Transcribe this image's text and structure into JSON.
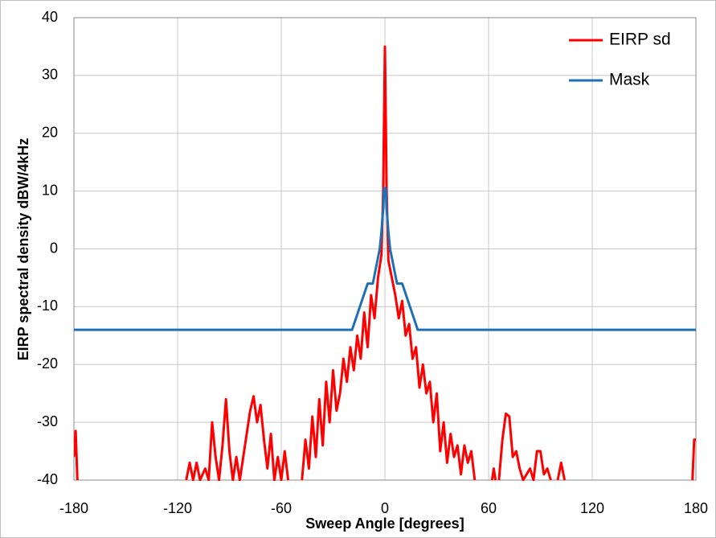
{
  "chart_data": {
    "type": "line",
    "xlabel": "Sweep Angle [degrees]",
    "ylabel": "EIRP spectral density dBW/4kHz",
    "xlim": [
      -180,
      180
    ],
    "xticks": [
      -180,
      -120,
      -60,
      0,
      60,
      120,
      180
    ],
    "ylim": [
      -40,
      40
    ],
    "yticks": [
      -40,
      -30,
      -20,
      -10,
      0,
      10,
      20,
      30,
      40
    ],
    "grid": true,
    "legend": "top-right",
    "series": [
      {
        "name": "EIRP sd",
        "color": "#ff0000",
        "x": [
          -180,
          -179,
          -178,
          -177,
          -115,
          -113,
          -111,
          -109,
          -107,
          -104,
          -102,
          -100,
          -98,
          -96,
          -94,
          -92,
          -90,
          -88,
          -86,
          -84,
          -80,
          -78,
          -76,
          -74,
          -72,
          -70,
          -68,
          -66,
          -64,
          -62,
          -60,
          -58,
          -56,
          -54,
          -48,
          -46,
          -44,
          -42,
          -40,
          -38,
          -36,
          -34,
          -32,
          -30,
          -28,
          -26,
          -24,
          -22,
          -20,
          -18,
          -16,
          -14,
          -12,
          -10,
          -8,
          -6,
          -4,
          -2,
          -1,
          0,
          1,
          2,
          4,
          6,
          8,
          10,
          12,
          14,
          16,
          18,
          20,
          22,
          24,
          26,
          28,
          30,
          32,
          34,
          36,
          38,
          40,
          42,
          44,
          46,
          48,
          50,
          52,
          54,
          62,
          63,
          64,
          65,
          66,
          68,
          70,
          72,
          74,
          76,
          78,
          80,
          82,
          84,
          86,
          88,
          90,
          92,
          94,
          96,
          98,
          100,
          102,
          104,
          106,
          178,
          179,
          180
        ],
        "values": [
          -36,
          -31.5,
          -40,
          null,
          -40,
          -37,
          -40,
          -37,
          -40,
          -38,
          -40,
          -30,
          -36,
          -40,
          -34,
          -26,
          -35,
          -40,
          -36,
          -40,
          -32,
          -28,
          -25.5,
          -30,
          -27,
          -33,
          -38,
          -32,
          -40,
          -36,
          -40,
          -35,
          -40,
          null,
          -40,
          -33,
          -38,
          -29,
          -36,
          -26,
          -34,
          -23,
          -30,
          -21,
          -28,
          -25,
          -19,
          -23,
          -17,
          -21,
          -15,
          -19,
          -11,
          -17,
          -8,
          -12,
          -5,
          -1,
          10,
          35,
          10,
          -2,
          -5,
          -8,
          -12,
          -9,
          -15,
          -13,
          -19,
          -17,
          -24,
          -20,
          -25,
          -23,
          -30,
          -25,
          -35,
          -30,
          -37,
          -32,
          -36,
          -34,
          -39,
          -34,
          -37,
          -35,
          -40,
          null,
          -40,
          -38,
          -40,
          null,
          -40,
          -33,
          -28.5,
          -29,
          -36,
          -35,
          -38,
          -40,
          -39,
          -38,
          -40,
          -35,
          -35,
          -39,
          -38,
          -40,
          null,
          -40,
          -37,
          -40,
          null,
          -40,
          -33,
          -33
        ]
      },
      {
        "name": "Mask",
        "color": "#1f6fb4",
        "x": [
          -180,
          -19,
          -10,
          -7,
          -5,
          -3,
          -2,
          -1,
          -0.5,
          0.5,
          1,
          2,
          3,
          5,
          7,
          10,
          19,
          180
        ],
        "values": [
          -14,
          -14,
          -6,
          -6,
          -3,
          0,
          3,
          7,
          10.5,
          10.5,
          7,
          3,
          0,
          -3,
          -6,
          -6,
          -14,
          -14
        ]
      }
    ]
  }
}
